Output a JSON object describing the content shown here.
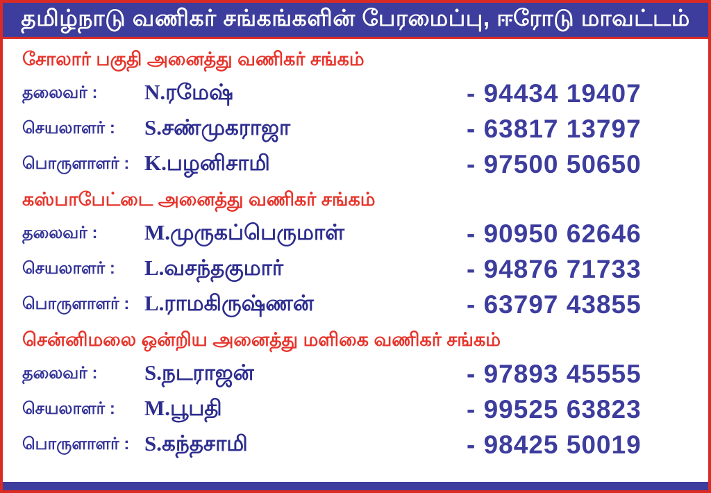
{
  "header": {
    "title": "தமிழ்நாடு வணிகர் சங்கங்களின் பேரமைப்பு, ஈரோடு மாவட்டம்"
  },
  "colors": {
    "header_bg": "#3d3d9e",
    "header_text": "#ffffff",
    "section_heading": "#e6332a",
    "label_text": "#333399",
    "name_text": "#2d2d8f",
    "phone_text": "#3d3d9e",
    "border": "#d92b23",
    "background": "#ffffff"
  },
  "sections": [
    {
      "heading": "சோலார் பகுதி அனைத்து வணிகர் சங்கம்",
      "rows": [
        {
          "label": "தலைவர் :",
          "name": "N.ரமேஷ்",
          "phone": "- 94434 19407"
        },
        {
          "label": "செயலாளர் :",
          "name": "S.சண்முகராஜா",
          "phone": "- 63817 13797"
        },
        {
          "label": "பொருளாளர் :",
          "name": "K.பழனிசாமி",
          "phone": "- 97500 50650"
        }
      ]
    },
    {
      "heading": "கஸ்பாபேட்டை அனைத்து வணிகர் சங்கம்",
      "rows": [
        {
          "label": "தலைவர் :",
          "name": "M.முருகப்பெருமாள்",
          "phone": "- 90950 62646"
        },
        {
          "label": "செயலாளர் :",
          "name": "L.வசந்தகுமார்",
          "phone": "- 94876 71733"
        },
        {
          "label": "பொருளாளர் :",
          "name": "L.ராமகிருஷ்ணன்",
          "phone": "- 63797 43855"
        }
      ]
    },
    {
      "heading": "சென்னிமலை ஒன்றிய அனைத்து மளிகை வணிகர் சங்கம்",
      "rows": [
        {
          "label": "தலைவர் :",
          "name": "S.நடராஜன்",
          "phone": "- 97893 45555"
        },
        {
          "label": "செயலாளர் :",
          "name": "M.பூபதி",
          "phone": "- 99525 63823"
        },
        {
          "label": "பொருளாளர் :",
          "name": "S.கந்தசாமி",
          "phone": "- 98425 50019"
        }
      ]
    }
  ]
}
